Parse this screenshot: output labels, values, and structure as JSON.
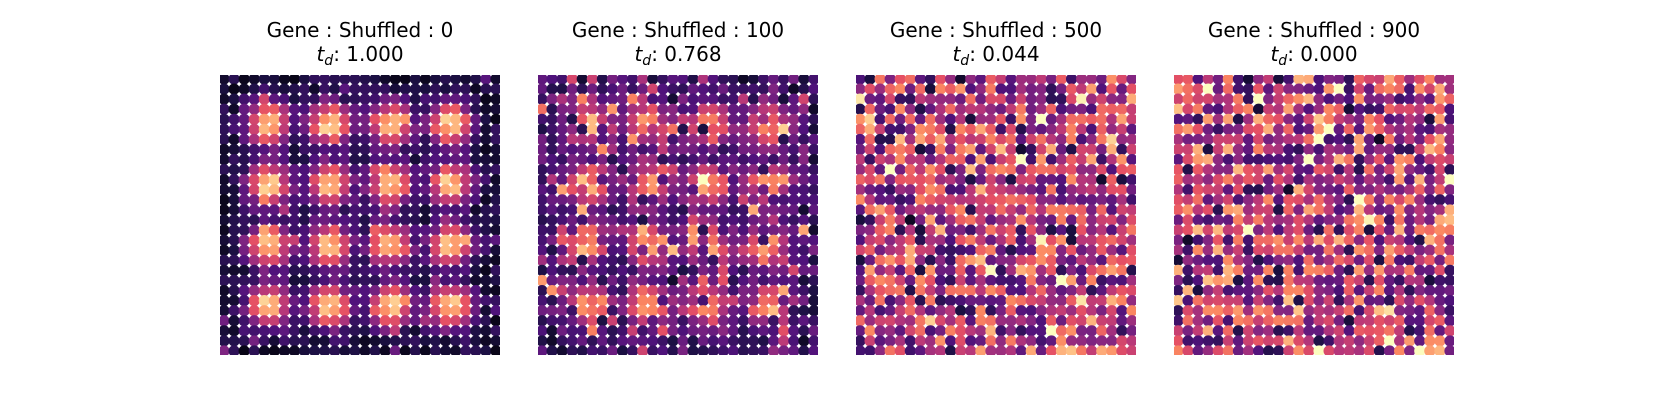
{
  "chart_data": [
    {
      "type": "heatmap",
      "title": "Gene : Shuffled : 0",
      "subtitle_symbol": "t",
      "subtitle_subscript": "d",
      "subtitle_value": ": 1.000",
      "grid_size": 28,
      "colormap": "magma",
      "axes": "off",
      "shuffled": 0,
      "t_d": 1.0,
      "seed": 11
    },
    {
      "type": "heatmap",
      "title": "Gene : Shuffled : 100",
      "subtitle_symbol": "t",
      "subtitle_subscript": "d",
      "subtitle_value": ": 0.768",
      "grid_size": 28,
      "colormap": "magma",
      "axes": "off",
      "shuffled": 100,
      "t_d": 0.768,
      "seed": 23
    },
    {
      "type": "heatmap",
      "title": "Gene : Shuffled : 500",
      "subtitle_symbol": "t",
      "subtitle_subscript": "d",
      "subtitle_value": ": 0.044",
      "grid_size": 28,
      "colormap": "magma",
      "axes": "off",
      "shuffled": 500,
      "t_d": 0.044,
      "seed": 37
    },
    {
      "type": "heatmap",
      "title": "Gene : Shuffled : 900",
      "subtitle_symbol": "t",
      "subtitle_subscript": "d",
      "subtitle_value": ": 0.000",
      "grid_size": 28,
      "colormap": "magma",
      "axes": "off",
      "shuffled": 900,
      "t_d": 0.0,
      "seed": 53
    }
  ]
}
